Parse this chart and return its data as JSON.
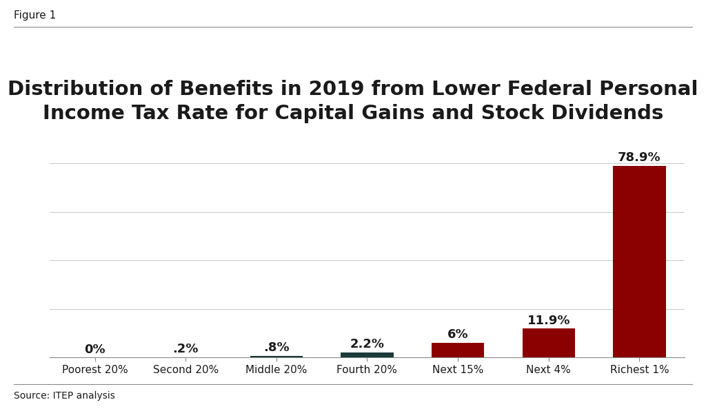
{
  "categories": [
    "Poorest 20%",
    "Second 20%",
    "Middle 20%",
    "Fourth 20%",
    "Next 15%",
    "Next 4%",
    "Richest 1%"
  ],
  "values": [
    0.0,
    0.2,
    0.8,
    2.2,
    6.0,
    11.9,
    78.9
  ],
  "labels": [
    "0%",
    ".2%",
    ".8%",
    "2.2%",
    "6%",
    "11.9%",
    "78.9%"
  ],
  "bar_colors": [
    "#8b0000",
    "#8b0000",
    "#1c3a3a",
    "#1c3a3a",
    "#8b0000",
    "#8b0000",
    "#8b0000"
  ],
  "figure_label": "Figure 1",
  "title": "Distribution of Benefits in 2019 from Lower Federal Personal\nIncome Tax Rate for Capital Gains and Stock Dividends",
  "source": "Source: ITEP analysis",
  "background_color": "#ffffff",
  "title_color": "#1a1a1a",
  "title_fontsize": 21,
  "figure_label_fontsize": 11,
  "tick_label_fontsize": 11,
  "value_label_fontsize": 13,
  "source_fontsize": 10,
  "ylim": [
    0,
    88
  ],
  "yticks": [
    0,
    20,
    40,
    60,
    80
  ],
  "grid_color": "#cccccc",
  "spine_color": "#888888",
  "bar_width": 0.58
}
